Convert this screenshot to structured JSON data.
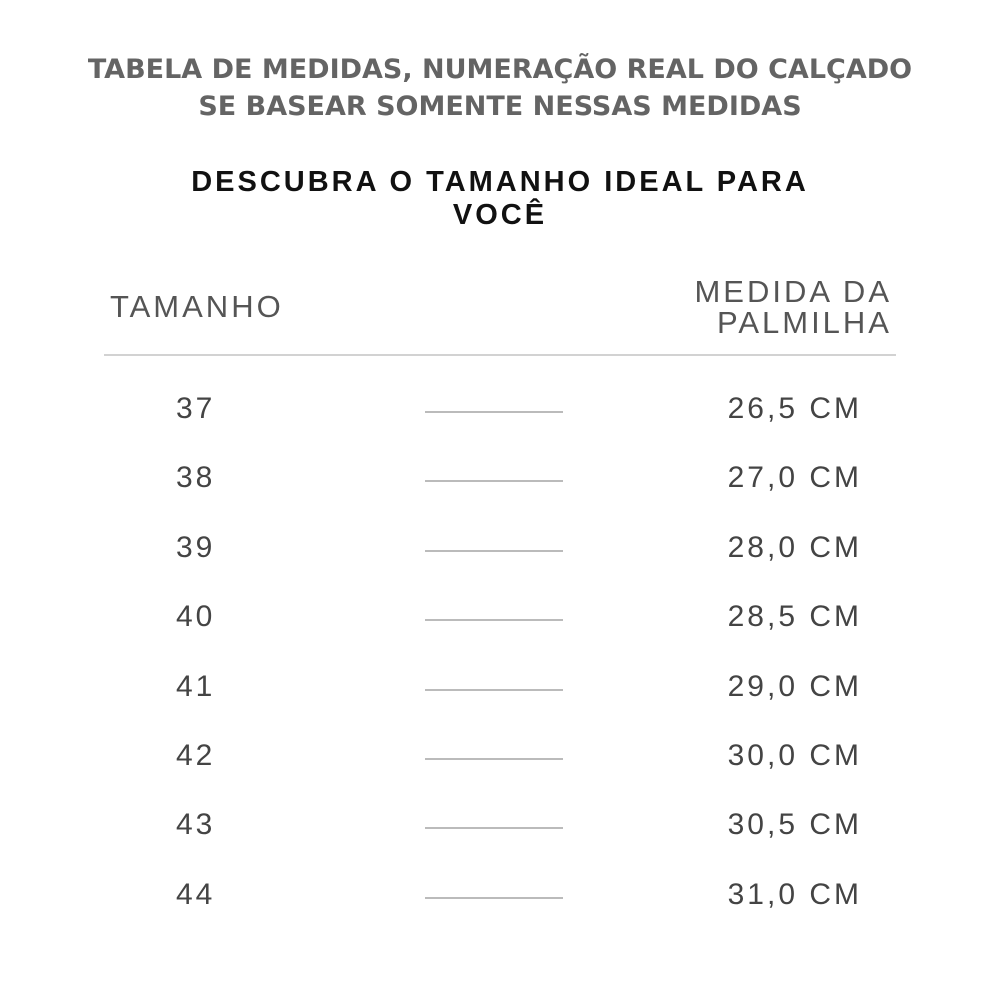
{
  "notice": {
    "line1": "TABELA DE  MEDIDAS, NUMERAÇÃO REAL DO CALÇADO",
    "line2": "SE BASEAR SOMENTE NESSAS MEDIDAS"
  },
  "title": {
    "line1": "DESCUBRA O TAMANHO IDEAL PARA",
    "line2": "VOCÊ"
  },
  "table": {
    "headers": {
      "size": "TAMANHO",
      "measure_line1": "MEDIDA DA",
      "measure_line2": "PALMILHA"
    },
    "rows": [
      {
        "size": "37",
        "measure": "26,5 CM"
      },
      {
        "size": "38",
        "measure": "27,0 CM"
      },
      {
        "size": "39",
        "measure": "28,0 CM"
      },
      {
        "size": "40",
        "measure": "28,5 CM"
      },
      {
        "size": "41",
        "measure": "29,0 CM"
      },
      {
        "size": "42",
        "measure": "30,0 CM"
      },
      {
        "size": "43",
        "measure": "30,5 CM"
      },
      {
        "size": "44",
        "measure": "31,0 CM"
      }
    ]
  }
}
